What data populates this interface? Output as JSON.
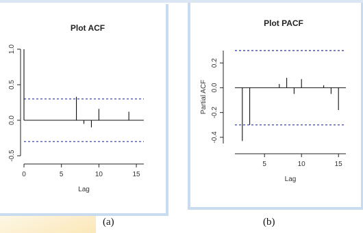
{
  "captions": [
    "(a)",
    "(b)"
  ],
  "chart_data": [
    {
      "type": "bar",
      "title": "Plot ACF",
      "xlabel": "Lag",
      "ylabel": "",
      "xticks": [
        "0",
        "5",
        "10",
        "15"
      ],
      "yticks": [
        "-0.5",
        "0.0",
        "0.5",
        "1.0"
      ],
      "xlim": [
        0,
        16
      ],
      "ylim": [
        -0.5,
        1.0
      ],
      "x": [
        0,
        1,
        2,
        3,
        4,
        5,
        6,
        7,
        8,
        9,
        10,
        11,
        12,
        13,
        14,
        15,
        16
      ],
      "values": [
        1.0,
        0.0,
        0.0,
        0.0,
        0.0,
        0.0,
        0.0,
        0.33,
        -0.05,
        -0.1,
        0.16,
        0.0,
        0.0,
        0.0,
        0.12,
        0.0,
        0.0
      ],
      "confidence_band": [
        -0.3,
        0.3
      ],
      "grid": false
    },
    {
      "type": "bar",
      "title": "Plot PACF",
      "xlabel": "Lag",
      "ylabel": "Partial ACF",
      "xticks": [
        "5",
        "10",
        "15"
      ],
      "yticks": [
        "-0.4",
        "-0.2",
        "0.0",
        "0.2"
      ],
      "xlim": [
        1,
        16
      ],
      "ylim": [
        -0.45,
        0.3
      ],
      "x": [
        2,
        3,
        7,
        8,
        9,
        10,
        13,
        14,
        15
      ],
      "values": [
        -0.43,
        -0.3,
        0.03,
        0.08,
        -0.05,
        0.07,
        0.02,
        -0.05,
        -0.18
      ],
      "confidence_band": [
        -0.3,
        0.3
      ],
      "grid": false
    }
  ]
}
